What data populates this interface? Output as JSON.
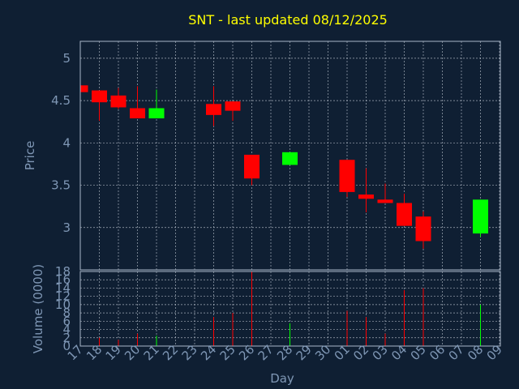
{
  "colors": {
    "background": "#0f1f33",
    "axis_text": "#7f97b5",
    "title": "#ffff00",
    "grid": "#c8d0da",
    "frame": "#a9b7c8",
    "up": "#00ff00",
    "down": "#ff0000"
  },
  "chart_data": {
    "type": "candlestick",
    "title": "SNT - last updated 08/12/2025",
    "xlabel": "Day",
    "price_panel": {
      "ylabel": "Price",
      "ylim": [
        2.5,
        5.2
      ],
      "yticks": [
        5,
        4.5,
        4,
        3.5,
        3
      ],
      "ytick_labels": [
        "5",
        "4.5",
        "4",
        "3.5",
        "3"
      ]
    },
    "volume_panel": {
      "ylabel": "Volume (0000)",
      "ylim": [
        0,
        18
      ],
      "yticks": [
        18,
        16,
        14,
        12,
        10,
        8,
        6,
        4,
        2,
        0
      ],
      "ytick_labels": [
        "18",
        "16",
        "14",
        "12",
        "10",
        "8",
        "6",
        "4",
        "2",
        "0"
      ]
    },
    "x_labels": [
      "17",
      "18",
      "19",
      "20",
      "21",
      "22",
      "23",
      "24",
      "25",
      "26",
      "27",
      "28",
      "29",
      "30",
      "01",
      "02",
      "03",
      "04",
      "05",
      "06",
      "07",
      "08",
      "09"
    ],
    "candles": [
      {
        "day": "17",
        "open": 4.68,
        "close": 4.6,
        "high": 4.68,
        "low": 4.6,
        "volume": 0
      },
      {
        "day": "18",
        "open": 4.62,
        "close": 4.48,
        "high": 4.62,
        "low": 4.26,
        "volume": 2
      },
      {
        "day": "19",
        "open": 4.56,
        "close": 4.42,
        "high": 4.65,
        "low": 4.4,
        "volume": 1.5
      },
      {
        "day": "20",
        "open": 4.41,
        "close": 4.29,
        "high": 4.67,
        "low": 4.29,
        "volume": 3
      },
      {
        "day": "21",
        "open": 4.29,
        "close": 4.41,
        "high": 4.63,
        "low": 4.29,
        "volume": 2.5
      },
      {
        "day": "24",
        "open": 4.46,
        "close": 4.33,
        "high": 4.67,
        "low": 4.2,
        "volume": 7
      },
      {
        "day": "25",
        "open": 4.49,
        "close": 4.38,
        "high": 4.49,
        "low": 4.26,
        "volume": 8
      },
      {
        "day": "26",
        "open": 3.86,
        "close": 3.58,
        "high": 3.86,
        "low": 3.5,
        "volume": 18
      },
      {
        "day": "28",
        "open": 3.74,
        "close": 3.89,
        "high": 3.89,
        "low": 3.74,
        "volume": 5.5
      },
      {
        "day": "01",
        "open": 3.8,
        "close": 3.42,
        "high": 3.8,
        "low": 3.36,
        "volume": 8.5
      },
      {
        "day": "02",
        "open": 3.39,
        "close": 3.34,
        "high": 3.7,
        "low": 3.18,
        "volume": 7
      },
      {
        "day": "03",
        "open": 3.33,
        "close": 3.29,
        "high": 3.52,
        "low": 3.29,
        "volume": 3
      },
      {
        "day": "04",
        "open": 3.29,
        "close": 3.02,
        "high": 3.4,
        "low": 3.02,
        "volume": 13.5
      },
      {
        "day": "05",
        "open": 3.13,
        "close": 2.84,
        "high": 3.19,
        "low": 2.75,
        "volume": 14
      },
      {
        "day": "08",
        "open": 2.93,
        "close": 3.33,
        "high": 3.33,
        "low": 2.89,
        "volume": 10
      }
    ]
  }
}
